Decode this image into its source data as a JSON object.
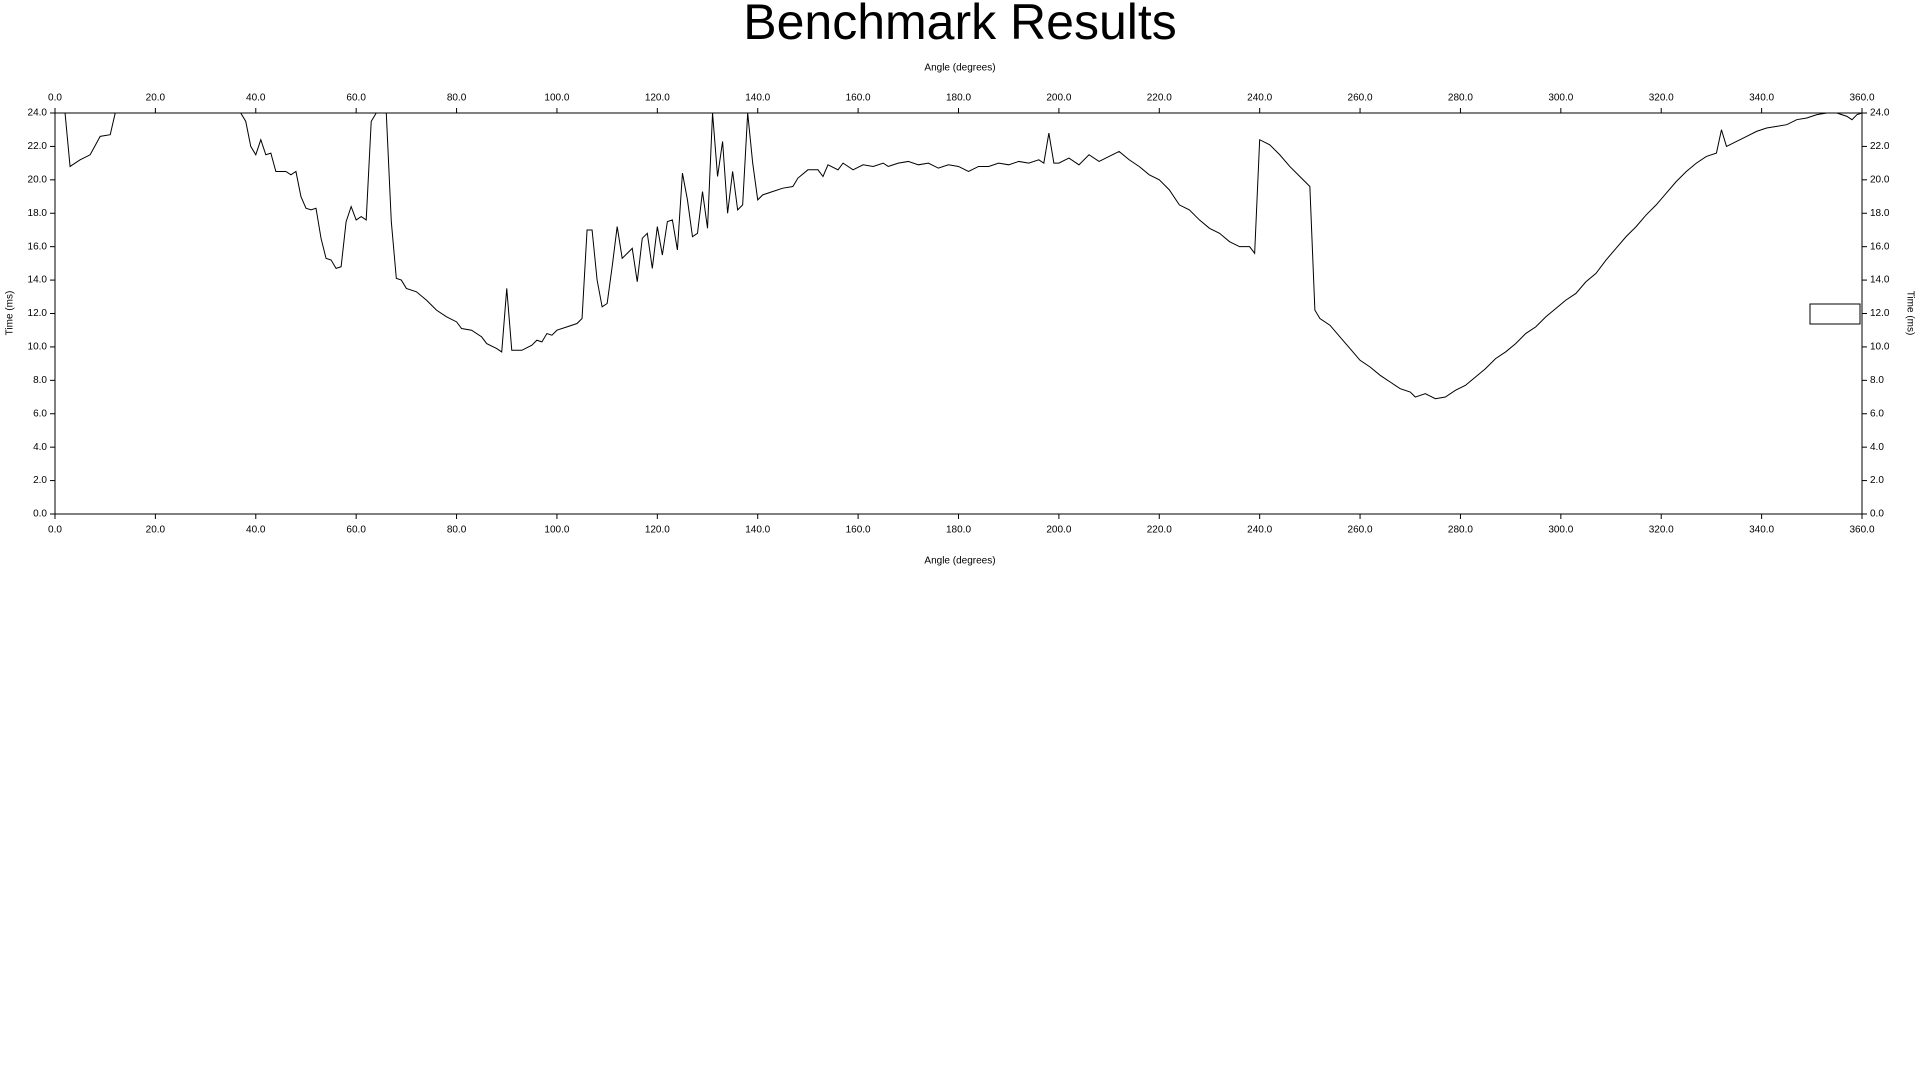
{
  "chart_data": {
    "type": "line",
    "title": "Benchmark Results",
    "x_label": "Angle (degrees)",
    "y_label": "Time (ms)",
    "x": [
      0,
      2,
      3,
      5,
      7,
      9,
      11,
      12,
      14,
      20,
      30,
      37,
      38,
      39,
      40,
      41,
      42,
      43,
      44,
      46,
      47,
      48,
      49,
      50,
      51,
      52,
      53,
      54,
      55,
      56,
      57,
      58,
      59,
      60,
      61,
      62,
      63,
      64,
      66,
      67,
      68,
      69,
      70,
      72,
      74,
      76,
      78,
      80,
      81,
      83,
      85,
      86,
      88,
      89,
      90,
      91,
      93,
      95,
      96,
      97,
      98,
      99,
      100,
      102,
      104,
      105,
      106,
      107,
      108,
      109,
      110,
      111,
      112,
      113,
      114,
      115,
      116,
      117,
      118,
      119,
      120,
      121,
      122,
      123,
      124,
      125,
      126,
      127,
      128,
      129,
      130,
      131,
      132,
      133,
      134,
      135,
      136,
      137,
      138,
      139,
      140,
      141,
      143,
      145,
      147,
      148,
      150,
      152,
      153,
      154,
      156,
      157,
      159,
      161,
      163,
      165,
      166,
      168,
      170,
      172,
      174,
      176,
      178,
      180,
      182,
      184,
      186,
      188,
      190,
      192,
      194,
      196,
      197,
      198,
      199,
      200,
      202,
      204,
      206,
      208,
      210,
      212,
      214,
      216,
      218,
      220,
      222,
      224,
      226,
      228,
      230,
      232,
      234,
      236,
      238,
      239,
      240,
      242,
      244,
      246,
      248,
      250,
      251,
      252,
      254,
      256,
      258,
      260,
      262,
      264,
      266,
      268,
      270,
      271,
      273,
      275,
      277,
      279,
      281,
      283,
      285,
      287,
      289,
      291,
      293,
      295,
      297,
      299,
      301,
      303,
      305,
      307,
      309,
      311,
      313,
      315,
      317,
      319,
      321,
      323,
      325,
      327,
      329,
      331,
      332,
      333,
      335,
      337,
      339,
      341,
      343,
      345,
      347,
      349,
      351,
      353,
      355,
      357,
      358,
      359,
      360
    ],
    "series": [
      {
        "color": "#000000",
        "values": [
          24,
          24,
          20.8,
          21.2,
          21.5,
          22.6,
          22.7,
          24,
          24,
          24,
          24,
          24,
          23.5,
          22.0,
          21.5,
          22.4,
          21.5,
          21.6,
          20.5,
          20.5,
          20.3,
          20.5,
          19.0,
          18.3,
          18.2,
          18.3,
          16.5,
          15.3,
          15.2,
          14.7,
          14.8,
          17.5,
          18.4,
          17.6,
          17.8,
          17.6,
          23.5,
          24,
          24,
          17.5,
          14.1,
          14.0,
          13.5,
          13.3,
          12.8,
          12.2,
          11.8,
          11.5,
          11.1,
          11.0,
          10.6,
          10.2,
          9.9,
          9.7,
          13.5,
          9.8,
          9.8,
          10.1,
          10.4,
          10.3,
          10.8,
          10.7,
          11.0,
          11.2,
          11.4,
          11.7,
          17.0,
          17.0,
          14.0,
          12.4,
          12.6,
          14.8,
          17.2,
          15.3,
          15.6,
          15.9,
          13.9,
          16.5,
          16.8,
          14.7,
          17.2,
          15.5,
          17.5,
          17.6,
          15.8,
          20.4,
          18.8,
          16.6,
          16.8,
          19.3,
          17.1,
          24,
          20.2,
          22.3,
          18.0,
          20.5,
          18.2,
          18.5,
          24,
          21.0,
          18.8,
          19.1,
          19.3,
          19.5,
          19.6,
          20.1,
          20.6,
          20.6,
          20.2,
          20.9,
          20.6,
          21.0,
          20.6,
          20.9,
          20.8,
          21.0,
          20.8,
          21.0,
          21.1,
          20.9,
          21.0,
          20.7,
          20.9,
          20.8,
          20.5,
          20.8,
          20.8,
          21.0,
          20.9,
          21.1,
          21.0,
          21.2,
          21.0,
          22.8,
          21.0,
          21.0,
          21.3,
          20.9,
          21.5,
          21.1,
          21.4,
          21.7,
          21.2,
          20.8,
          20.3,
          20.0,
          19.4,
          18.5,
          18.2,
          17.6,
          17.1,
          16.8,
          16.3,
          16.0,
          16.0,
          15.6,
          22.4,
          22.1,
          21.5,
          20.8,
          20.2,
          19.6,
          12.2,
          11.7,
          11.3,
          10.6,
          9.9,
          9.2,
          8.8,
          8.3,
          7.9,
          7.5,
          7.3,
          7.0,
          7.2,
          6.9,
          7.0,
          7.4,
          7.7,
          8.2,
          8.7,
          9.3,
          9.7,
          10.2,
          10.8,
          11.2,
          11.8,
          12.3,
          12.8,
          13.2,
          13.9,
          14.4,
          15.2,
          15.9,
          16.6,
          17.2,
          17.9,
          18.5,
          19.2,
          19.9,
          20.5,
          21.0,
          21.4,
          21.6,
          23.0,
          22.0,
          22.3,
          22.6,
          22.9,
          23.1,
          23.2,
          23.3,
          23.6,
          23.7,
          23.9,
          24.0,
          24.0,
          23.8,
          23.6,
          23.9,
          24.0
        ]
      }
    ],
    "xlim": [
      0,
      360
    ],
    "xticks": [
      {
        "value": 0,
        "label": "0.0"
      },
      {
        "value": 20,
        "label": "20.0"
      },
      {
        "value": 40,
        "label": "40.0"
      },
      {
        "value": 60,
        "label": "60.0"
      },
      {
        "value": 80,
        "label": "80.0"
      },
      {
        "value": 100,
        "label": "100.0"
      },
      {
        "value": 120,
        "label": "120.0"
      },
      {
        "value": 140,
        "label": "140.0"
      },
      {
        "value": 160,
        "label": "160.0"
      },
      {
        "value": 180,
        "label": "180.0"
      },
      {
        "value": 200,
        "label": "200.0"
      },
      {
        "value": 220,
        "label": "220.0"
      },
      {
        "value": 240,
        "label": "240.0"
      },
      {
        "value": 260,
        "label": "260.0"
      },
      {
        "value": 280,
        "label": "280.0"
      },
      {
        "value": 300,
        "label": "300.0"
      },
      {
        "value": 320,
        "label": "320.0"
      },
      {
        "value": 340,
        "label": "340.0"
      },
      {
        "value": 360,
        "label": "360.0"
      }
    ],
    "ylim": [
      0,
      24
    ],
    "yticks": [
      {
        "value": 0,
        "label": "0.0"
      },
      {
        "value": 2,
        "label": "2.0"
      },
      {
        "value": 4,
        "label": "4.0"
      },
      {
        "value": 6,
        "label": "6.0"
      },
      {
        "value": 8,
        "label": "8.0"
      },
      {
        "value": 10,
        "label": "10.0"
      },
      {
        "value": 12,
        "label": "12.0"
      },
      {
        "value": 14,
        "label": "14.0"
      },
      {
        "value": 16,
        "label": "16.0"
      },
      {
        "value": 18,
        "label": "18.0"
      },
      {
        "value": 20,
        "label": "20.0"
      },
      {
        "value": 22,
        "label": "22.0"
      },
      {
        "value": 24,
        "label": "24.0"
      }
    ],
    "grid": false
  }
}
